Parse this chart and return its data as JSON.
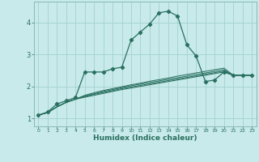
{
  "xlabel": "Humidex (Indice chaleur)",
  "bg_color": "#c8eaea",
  "grid_color": "#a8d4d4",
  "line_color": "#2a7060",
  "xlim": [
    -0.5,
    23.5
  ],
  "ylim": [
    0.75,
    4.65
  ],
  "xticks": [
    0,
    1,
    2,
    3,
    4,
    5,
    6,
    7,
    8,
    9,
    10,
    11,
    12,
    13,
    14,
    15,
    16,
    17,
    18,
    19,
    20,
    21,
    22,
    23
  ],
  "yticks": [
    1,
    2,
    3,
    4
  ],
  "lines": [
    {
      "x": [
        0,
        1,
        2,
        3,
        4,
        5,
        6,
        7,
        8,
        9,
        10,
        11,
        12,
        13,
        14,
        15,
        16,
        17,
        18,
        19,
        20,
        21,
        22,
        23
      ],
      "y": [
        1.1,
        1.2,
        1.45,
        1.55,
        1.65,
        2.45,
        2.45,
        2.45,
        2.55,
        2.6,
        3.45,
        3.7,
        3.95,
        4.3,
        4.35,
        4.2,
        3.3,
        2.95,
        2.15,
        2.2,
        2.45,
        2.35,
        2.35,
        2.35
      ],
      "marker": true
    },
    {
      "x": [
        0,
        1,
        2,
        3,
        4,
        5,
        6,
        7,
        8,
        9,
        10,
        11,
        12,
        13,
        14,
        15,
        16,
        17,
        18,
        19,
        20,
        21,
        22,
        23
      ],
      "y": [
        1.1,
        1.18,
        1.36,
        1.5,
        1.6,
        1.72,
        1.8,
        1.87,
        1.93,
        1.99,
        2.05,
        2.1,
        2.16,
        2.21,
        2.26,
        2.32,
        2.37,
        2.42,
        2.47,
        2.52,
        2.57,
        2.35,
        2.35,
        2.35
      ],
      "marker": false
    },
    {
      "x": [
        0,
        1,
        2,
        3,
        4,
        5,
        6,
        7,
        8,
        9,
        10,
        11,
        12,
        13,
        14,
        15,
        16,
        17,
        18,
        19,
        20,
        21,
        22,
        23
      ],
      "y": [
        1.1,
        1.18,
        1.36,
        1.5,
        1.6,
        1.7,
        1.77,
        1.84,
        1.9,
        1.96,
        2.02,
        2.07,
        2.12,
        2.17,
        2.22,
        2.27,
        2.32,
        2.37,
        2.42,
        2.47,
        2.52,
        2.35,
        2.35,
        2.35
      ],
      "marker": false
    },
    {
      "x": [
        0,
        1,
        2,
        3,
        4,
        5,
        6,
        7,
        8,
        9,
        10,
        11,
        12,
        13,
        14,
        15,
        16,
        17,
        18,
        19,
        20,
        21,
        22,
        23
      ],
      "y": [
        1.1,
        1.18,
        1.36,
        1.5,
        1.6,
        1.68,
        1.75,
        1.81,
        1.87,
        1.93,
        1.98,
        2.03,
        2.08,
        2.13,
        2.18,
        2.23,
        2.28,
        2.33,
        2.38,
        2.43,
        2.48,
        2.35,
        2.35,
        2.35
      ],
      "marker": false
    },
    {
      "x": [
        0,
        1,
        2,
        3,
        4,
        5,
        6,
        7,
        8,
        9,
        10,
        11,
        12,
        13,
        14,
        15,
        16,
        17,
        18,
        19,
        20,
        21,
        22,
        23
      ],
      "y": [
        1.1,
        1.18,
        1.36,
        1.5,
        1.6,
        1.66,
        1.72,
        1.78,
        1.84,
        1.9,
        1.95,
        2.0,
        2.05,
        2.1,
        2.15,
        2.2,
        2.25,
        2.3,
        2.35,
        2.4,
        2.45,
        2.35,
        2.35,
        2.35
      ],
      "marker": false
    }
  ]
}
